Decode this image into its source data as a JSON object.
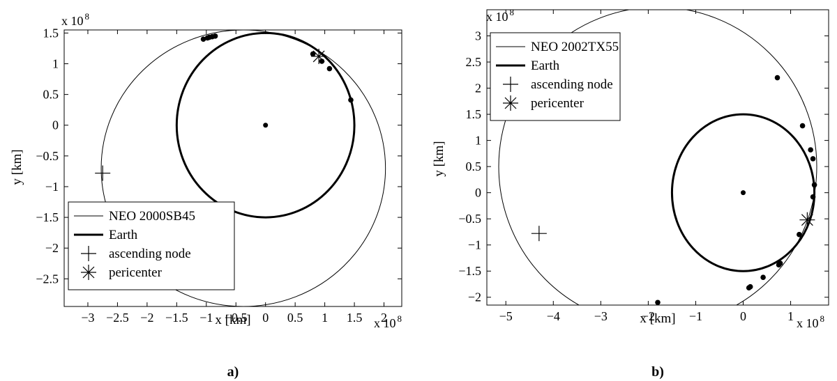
{
  "chart_data": [
    {
      "type": "scatter",
      "panel_label": "a)",
      "xlabel": "x [km]",
      "ylabel": "y [km]",
      "x_exponent_label": "x 10",
      "x_exponent_power": "8",
      "y_exponent_label": "x 10",
      "y_exponent_power": "8",
      "xlim": [
        -3.4,
        2.3
      ],
      "ylim": [
        -2.95,
        1.55
      ],
      "xticks": [
        -3,
        -2.5,
        -2,
        -1.5,
        -1,
        -0.5,
        0,
        0.5,
        1,
        1.5,
        2
      ],
      "xtick_labels": [
        "−3",
        "−2.5",
        "−2",
        "−1.5",
        "−1",
        "−0.5",
        "0",
        "0.5",
        "1",
        "1.5",
        "2"
      ],
      "yticks": [
        -2.5,
        -2,
        -1.5,
        -1,
        -0.5,
        0,
        0.5,
        1,
        1.5
      ],
      "ytick_labels": [
        "−2.5",
        "−2",
        "−1.5",
        "−1",
        "−0.5",
        "0",
        "0.5",
        "1",
        "1.5"
      ],
      "legend": {
        "position": "lower-left",
        "entries": [
          "NEO 2000SB45",
          "Earth",
          "ascending node",
          "pericenter"
        ]
      },
      "neo_orbit": {
        "center": [
          -0.375,
          -0.7
        ],
        "semi_axes": [
          2.4,
          2.25
        ]
      },
      "earth_orbit": {
        "center": [
          0,
          0
        ],
        "radius": 1.5
      },
      "sun": [
        0,
        0
      ],
      "ascending_node": [
        -2.75,
        -0.78
      ],
      "pericenter": [
        0.9,
        1.12
      ],
      "encounter_points": [
        [
          -0.98,
          1.42
        ],
        [
          -0.95,
          1.43
        ],
        [
          -0.9,
          1.44
        ],
        [
          -0.85,
          1.45
        ],
        [
          -1.05,
          1.4
        ],
        [
          0.8,
          1.16
        ],
        [
          0.95,
          1.04
        ],
        [
          1.08,
          0.92
        ],
        [
          1.44,
          0.41
        ]
      ],
      "units": "x, y in 10^8 km"
    },
    {
      "type": "scatter",
      "panel_label": "b)",
      "xlabel": "x [km]",
      "ylabel": "y [km]",
      "x_exponent_label": "x 10",
      "x_exponent_power": "8",
      "y_exponent_label": "x 10",
      "y_exponent_power": "8",
      "xlim": [
        -5.4,
        1.8
      ],
      "ylim": [
        -2.15,
        3.5
      ],
      "xticks": [
        -5,
        -4,
        -3,
        -2,
        -1,
        0,
        1
      ],
      "xtick_labels": [
        "−5",
        "−4",
        "−3",
        "−2",
        "−1",
        "0",
        "1"
      ],
      "yticks": [
        -2,
        -1.5,
        -1,
        -0.5,
        0,
        0.5,
        1,
        1.5,
        2,
        2.5,
        3
      ],
      "ytick_labels": [
        "−2",
        "−1.5",
        "−1",
        "−0.5",
        "0",
        "0.5",
        "1",
        "1.5",
        "2",
        "2.5",
        "3"
      ],
      "legend": {
        "position": "top-left",
        "entries": [
          "NEO 2002TX55",
          "Earth",
          "ascending node",
          "pericenter"
        ]
      },
      "neo_orbit": {
        "center": [
          -1.8,
          0.5
        ],
        "semi_axes": [
          3.35,
          3.05
        ]
      },
      "earth_orbit": {
        "center": [
          0,
          0
        ],
        "radius": 1.5
      },
      "sun": [
        0,
        0
      ],
      "ascending_node": [
        -4.3,
        -0.78
      ],
      "pericenter": [
        1.35,
        -0.52
      ],
      "encounter_points": [
        [
          0.72,
          2.2
        ],
        [
          1.25,
          1.28
        ],
        [
          1.42,
          0.82
        ],
        [
          1.47,
          0.65
        ],
        [
          1.5,
          0.15
        ],
        [
          1.47,
          -0.08
        ],
        [
          1.18,
          -0.8
        ],
        [
          0.78,
          -1.35
        ],
        [
          0.75,
          -1.38
        ],
        [
          0.42,
          -1.62
        ],
        [
          0.15,
          -1.8
        ],
        [
          0.12,
          -1.82
        ],
        [
          -1.8,
          -2.1
        ]
      ],
      "units": "x, y in 10^8 km"
    }
  ]
}
